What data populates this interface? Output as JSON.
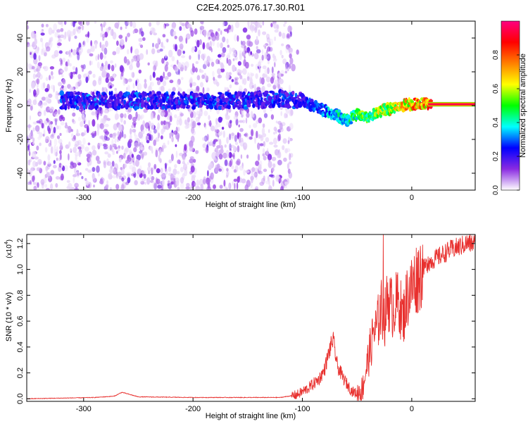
{
  "figure": {
    "title": "C2E4.2025.076.17.30.R01"
  },
  "chart_data": [
    {
      "type": "heatmap",
      "xlabel": "Height of straight line (km)",
      "ylabel": "Frequency (Hz)",
      "xlim": [
        -352,
        58
      ],
      "ylim": [
        -50,
        50
      ],
      "xticks": [
        -300,
        -200,
        -100,
        0
      ],
      "xtick_labels": [
        "-300",
        "-200",
        "-100",
        "0"
      ],
      "yticks": [
        -40,
        -20,
        0,
        20,
        40
      ],
      "ytick_labels": [
        "-40",
        "-20",
        "0",
        "20",
        "40"
      ],
      "colorbar": {
        "label": "Normalized spectral amplitude",
        "range": [
          0,
          1
        ],
        "ticks": [
          0.0,
          0.2,
          0.4,
          0.6,
          0.8
        ],
        "tick_labels": [
          "0.0",
          "0.2",
          "0.4",
          "0.6",
          "0.8"
        ],
        "colors": [
          "#ffffff",
          "#8a2be2",
          "#0000ff",
          "#00ffff",
          "#00ff00",
          "#ffff00",
          "#ff8000",
          "#ff0000",
          "#ff0080"
        ]
      },
      "ridge": {
        "x": [
          -300,
          -250,
          -200,
          -150,
          -120,
          -100,
          -80,
          -70,
          -60,
          -50,
          -40,
          -30,
          -20,
          -10,
          0,
          10,
          58
        ],
        "y": [
          3,
          3,
          3,
          3,
          4,
          3,
          -3,
          -5,
          -9,
          -5,
          -7,
          -3,
          -2,
          0,
          1,
          1,
          0
        ]
      }
    },
    {
      "type": "line",
      "xlabel": "Height of straight line (km)",
      "ylabel": "SNR (10 * v/v)",
      "ylabel_multiplier": "(x10",
      "ylabel_exponent": "4",
      "xlim": [
        -352,
        58
      ],
      "ylim": [
        -0.02,
        1.27
      ],
      "xticks": [
        -300,
        -200,
        -100,
        0
      ],
      "xtick_labels": [
        "-300",
        "-200",
        "-100",
        "0"
      ],
      "yticks": [
        0.0,
        0.2,
        0.4,
        0.6,
        0.8,
        1.0,
        1.2
      ],
      "ytick_labels": [
        "0.0",
        "0.2",
        "0.4",
        "0.6",
        "0.8",
        "1.0",
        "1.2"
      ],
      "color": "#e8302e",
      "x": [
        -352,
        -320,
        -290,
        -272,
        -265,
        -250,
        -200,
        -150,
        -120,
        -105,
        -95,
        -85,
        -80,
        -75,
        -72,
        -68,
        -62,
        -55,
        -50,
        -45,
        -40,
        -35,
        -32,
        -28,
        -25,
        -22,
        -18,
        -12,
        -8,
        -4,
        0,
        4,
        8,
        15,
        25,
        35,
        45,
        50,
        58
      ],
      "y": [
        0.0,
        0.005,
        0.01,
        0.02,
        0.05,
        0.015,
        0.01,
        0.01,
        0.01,
        0.03,
        0.08,
        0.15,
        0.22,
        0.38,
        0.46,
        0.25,
        0.15,
        0.06,
        0.04,
        0.08,
        0.3,
        0.5,
        0.55,
        0.7,
        0.6,
        0.78,
        0.7,
        0.76,
        0.62,
        0.8,
        0.86,
        0.93,
        0.98,
        1.05,
        1.1,
        1.15,
        1.18,
        1.2,
        1.2
      ],
      "spikes": [
        {
          "x": -26,
          "y": 1.27
        },
        {
          "x": -22,
          "y": 0.9
        },
        {
          "x": -35,
          "y": 0.55
        },
        {
          "x": 15,
          "y": 1.1
        }
      ]
    }
  ]
}
